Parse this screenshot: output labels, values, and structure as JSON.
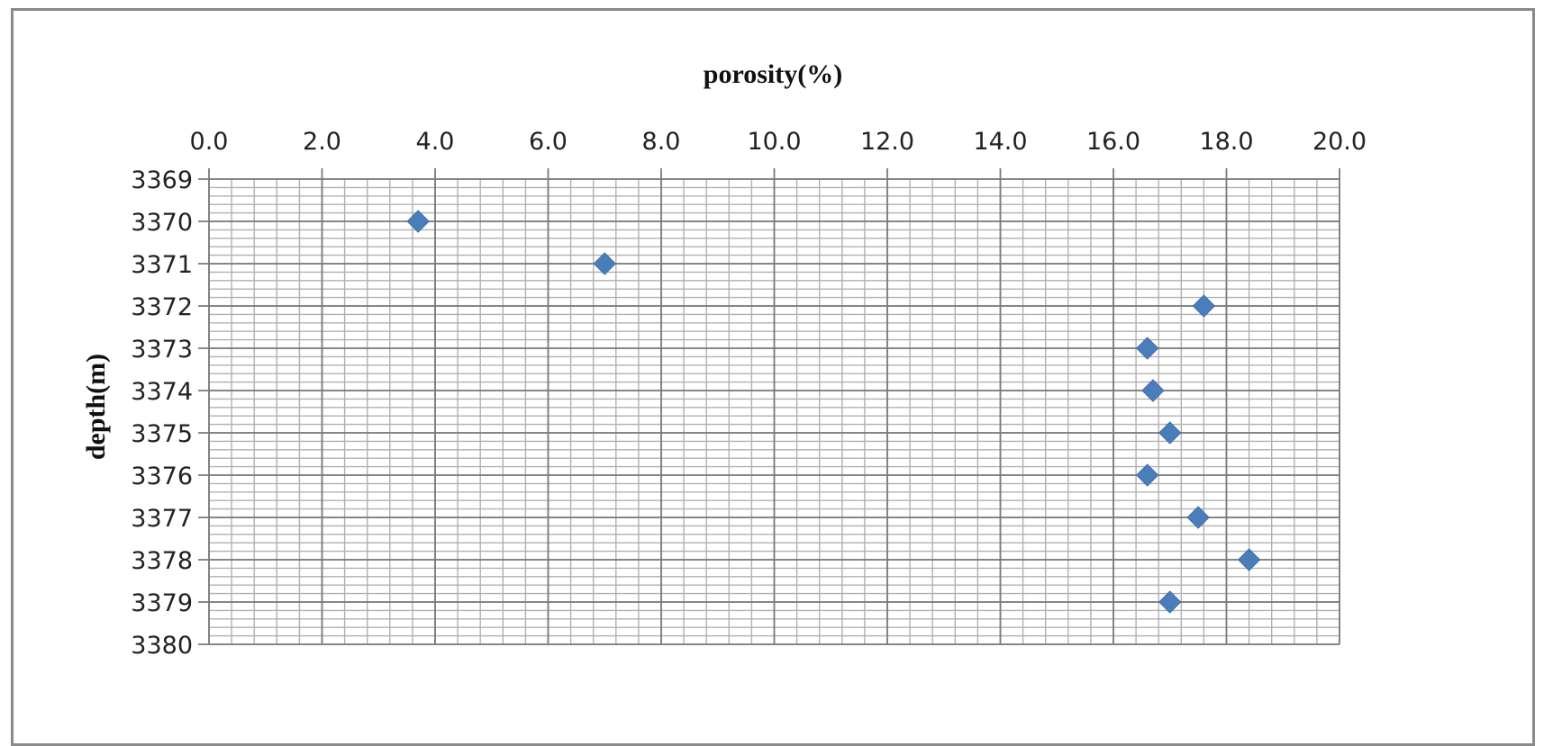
{
  "chart_data": {
    "type": "scatter",
    "title": "porosity(%)",
    "xlabel": "porosity(%)",
    "ylabel": "depth(m)",
    "x_axis_position": "top",
    "y_axis_inverted": true,
    "xlim": [
      0,
      20
    ],
    "ylim": [
      3369,
      3380
    ],
    "x_major_step": 2,
    "x_minor_step": 0.4,
    "y_major_step": 1,
    "y_minor_step": 0.2,
    "grid": true,
    "x_tick_labels": [
      "0.0",
      "2.0",
      "4.0",
      "6.0",
      "8.0",
      "10.0",
      "12.0",
      "14.0",
      "16.0",
      "18.0",
      "20.0"
    ],
    "y_tick_labels": [
      "3369",
      "3370",
      "3371",
      "3372",
      "3373",
      "3374",
      "3375",
      "3376",
      "3377",
      "3378",
      "3379",
      "3380"
    ],
    "marker": "diamond",
    "marker_color": "#4a7ebb",
    "series": [
      {
        "name": "porosity",
        "points": [
          {
            "depth": 3370,
            "porosity": 3.7
          },
          {
            "depth": 3371,
            "porosity": 7.0
          },
          {
            "depth": 3372,
            "porosity": 17.6
          },
          {
            "depth": 3373,
            "porosity": 16.6
          },
          {
            "depth": 3374,
            "porosity": 16.7
          },
          {
            "depth": 3375,
            "porosity": 17.0
          },
          {
            "depth": 3376,
            "porosity": 16.6
          },
          {
            "depth": 3377,
            "porosity": 17.5
          },
          {
            "depth": 3378,
            "porosity": 18.4
          },
          {
            "depth": 3379,
            "porosity": 17.0
          }
        ]
      }
    ]
  },
  "colors": {
    "frame": "#8a8a8a",
    "grid_major": "#7a7a7a",
    "grid_minor": "#b0b0b0",
    "marker": "#4a7ebb"
  }
}
